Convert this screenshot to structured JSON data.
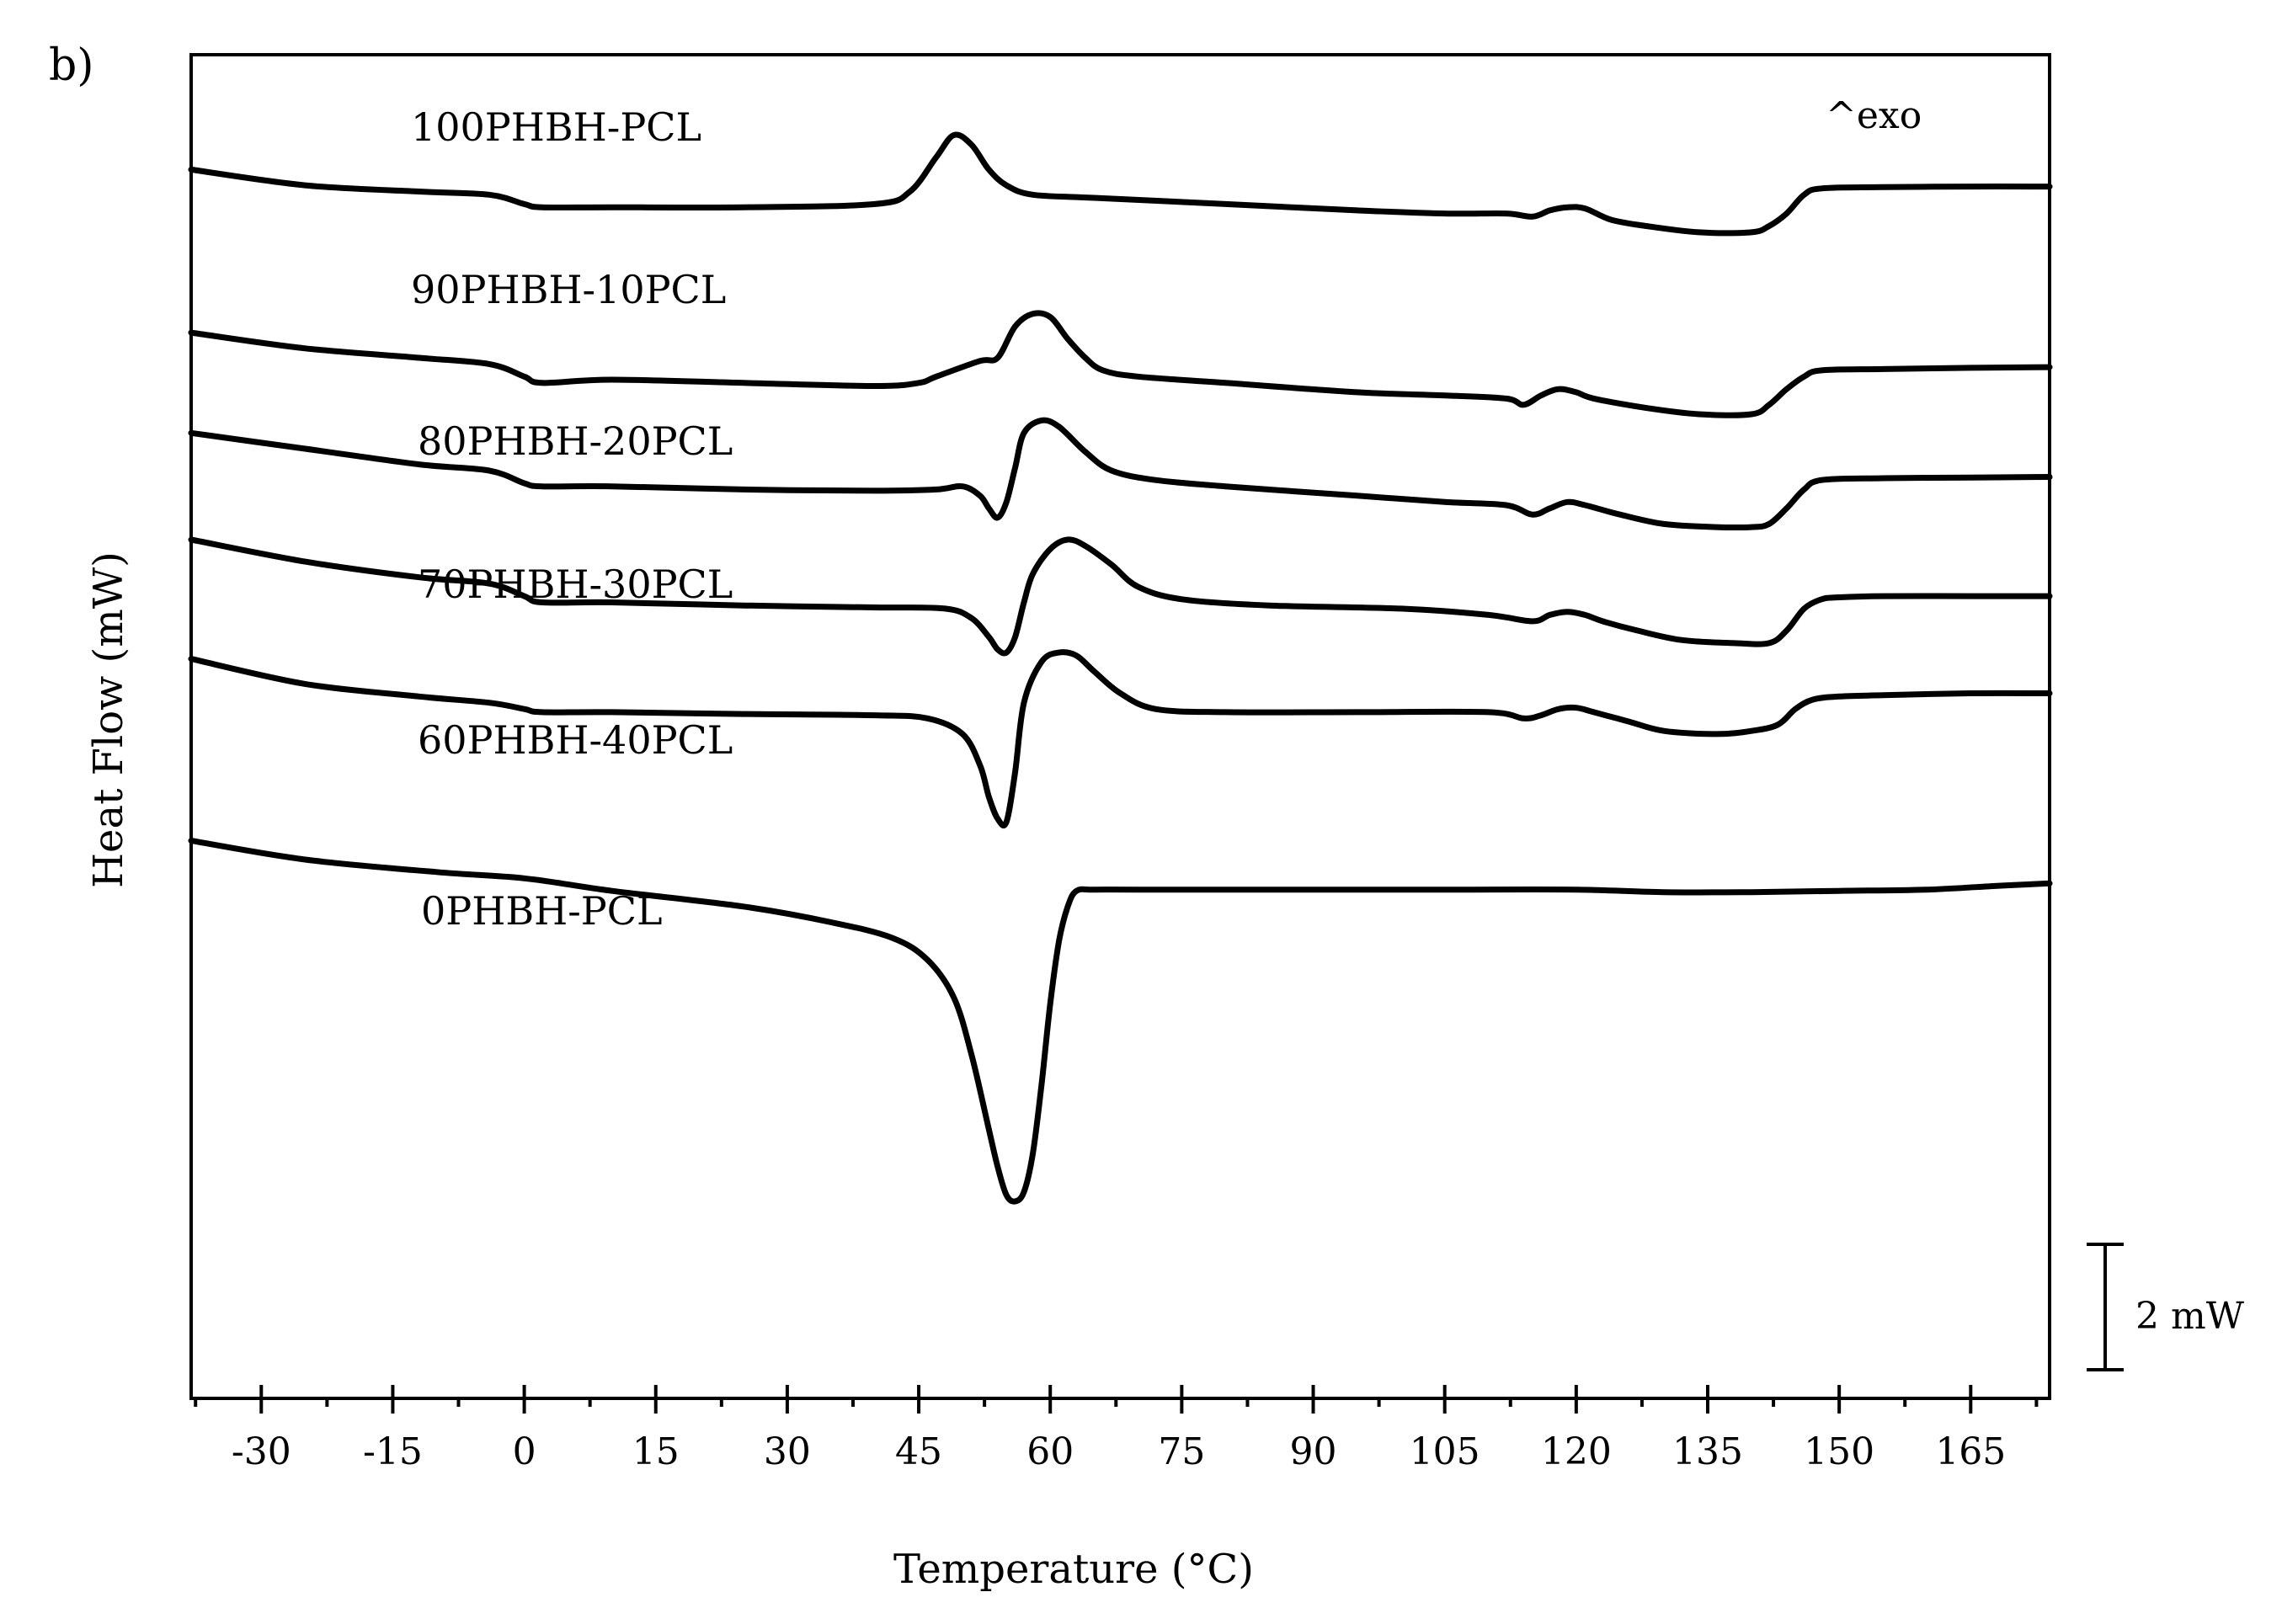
{
  "chart_data": {
    "type": "line",
    "panel_label": "b)",
    "title": "",
    "xlabel": "Temperature (°C)",
    "ylabel": "Heat Flow (mW)",
    "xlim": [
      -38,
      174
    ],
    "x_ticks": [
      -30,
      -15,
      0,
      15,
      30,
      45,
      60,
      75,
      90,
      105,
      120,
      135,
      150,
      165
    ],
    "y_ticks": [],
    "grid": false,
    "annotation": "^exo",
    "scale_bar_label": "2 mW",
    "scale_bar_mw": 2,
    "series": [
      {
        "name": "100PHBH-PCL",
        "offset": 0,
        "x": [
          -38,
          -25,
          -12,
          -4,
          0,
          2,
          10,
          25,
          40,
          44,
          47,
          49,
          51,
          53,
          55,
          58,
          65,
          80,
          95,
          105,
          112,
          115,
          117,
          119,
          121,
          124,
          128,
          134,
          140,
          142,
          144,
          146,
          148,
          155,
          165,
          174
        ],
        "y": [
          -0.1,
          -0.35,
          -0.45,
          -0.5,
          -0.65,
          -0.7,
          -0.7,
          -0.7,
          -0.65,
          -0.45,
          0.1,
          0.45,
          0.3,
          -0.1,
          -0.35,
          -0.5,
          -0.55,
          -0.65,
          -0.75,
          -0.8,
          -0.8,
          -0.85,
          -0.75,
          -0.7,
          -0.72,
          -0.9,
          -1.0,
          -1.1,
          -1.1,
          -1.0,
          -0.8,
          -0.5,
          -0.4,
          -0.38,
          -0.37,
          -0.37
        ]
      },
      {
        "name": "90PHBH-10PCL",
        "offset": -2.6,
        "x": [
          -38,
          -25,
          -12,
          -4,
          0,
          2,
          10,
          25,
          40,
          45,
          47,
          52,
          54,
          56,
          58,
          60,
          62,
          64,
          66,
          70,
          80,
          95,
          105,
          112,
          114,
          116,
          118,
          120,
          122,
          128,
          134,
          140,
          142,
          144,
          146,
          148,
          155,
          165,
          174
        ],
        "y": [
          -0.1,
          -0.35,
          -0.5,
          -0.6,
          -0.8,
          -0.9,
          -0.85,
          -0.9,
          -0.95,
          -0.9,
          -0.8,
          -0.55,
          -0.5,
          0.0,
          0.2,
          0.15,
          -0.2,
          -0.5,
          -0.7,
          -0.8,
          -0.9,
          -1.05,
          -1.1,
          -1.15,
          -1.25,
          -1.1,
          -1.0,
          -1.05,
          -1.15,
          -1.3,
          -1.4,
          -1.4,
          -1.25,
          -1.0,
          -0.8,
          -0.7,
          -0.68,
          -0.66,
          -0.65
        ]
      },
      {
        "name": "80PHBH-20PCL",
        "offset": -4.3,
        "x": [
          -38,
          -25,
          -12,
          -4,
          0,
          2,
          10,
          25,
          40,
          47,
          50,
          52,
          53,
          54,
          55,
          56,
          57,
          59,
          61,
          64,
          67,
          72,
          80,
          95,
          105,
          112,
          115,
          117,
          119,
          121,
          125,
          130,
          136,
          140,
          142,
          144,
          146,
          148,
          155,
          165,
          174
        ],
        "y": [
          0.0,
          -0.25,
          -0.5,
          -0.6,
          -0.8,
          -0.85,
          -0.85,
          -0.9,
          -0.92,
          -0.9,
          -0.85,
          -1.0,
          -1.2,
          -1.35,
          -1.1,
          -0.55,
          0.0,
          0.2,
          0.1,
          -0.3,
          -0.6,
          -0.75,
          -0.85,
          -1.0,
          -1.1,
          -1.15,
          -1.3,
          -1.2,
          -1.1,
          -1.15,
          -1.3,
          -1.45,
          -1.5,
          -1.5,
          -1.45,
          -1.2,
          -0.9,
          -0.75,
          -0.72,
          -0.71,
          -0.7
        ]
      },
      {
        "name": "70PHBH-30PCL",
        "offset": -6.0,
        "x": [
          -38,
          -25,
          -12,
          -4,
          0,
          2,
          10,
          25,
          40,
          48,
          51,
          53,
          54,
          55,
          56,
          57,
          58,
          60,
          62,
          64,
          67,
          70,
          75,
          85,
          100,
          110,
          115,
          117,
          119,
          121,
          123,
          127,
          132,
          138,
          142,
          144,
          146,
          148,
          150,
          155,
          165,
          174
        ],
        "y": [
          0.0,
          -0.35,
          -0.6,
          -0.7,
          -0.9,
          -1.0,
          -1.0,
          -1.05,
          -1.08,
          -1.1,
          -1.25,
          -1.55,
          -1.75,
          -1.8,
          -1.55,
          -1.0,
          -0.55,
          -0.15,
          0.0,
          -0.1,
          -0.4,
          -0.75,
          -0.95,
          -1.05,
          -1.1,
          -1.2,
          -1.3,
          -1.2,
          -1.15,
          -1.2,
          -1.3,
          -1.45,
          -1.6,
          -1.65,
          -1.65,
          -1.45,
          -1.1,
          -0.95,
          -0.92,
          -0.9,
          -0.9,
          -0.9
        ]
      },
      {
        "name": "60PHBH-40PCL",
        "offset": -7.9,
        "x": [
          -38,
          -25,
          -12,
          -4,
          0,
          2,
          10,
          25,
          40,
          46,
          50,
          52,
          53,
          54,
          55,
          56,
          57,
          59,
          61,
          63,
          65,
          68,
          72,
          80,
          95,
          110,
          114,
          116,
          118,
          120,
          122,
          126,
          130,
          136,
          140,
          143,
          145,
          147,
          150,
          155,
          165,
          174
        ],
        "y": [
          0.0,
          -0.4,
          -0.6,
          -0.7,
          -0.8,
          -0.85,
          -0.85,
          -0.88,
          -0.9,
          -0.95,
          -1.2,
          -1.7,
          -2.2,
          -2.55,
          -2.6,
          -1.8,
          -0.7,
          -0.05,
          0.1,
          0.05,
          -0.2,
          -0.55,
          -0.8,
          -0.85,
          -0.85,
          -0.85,
          -0.95,
          -0.9,
          -0.8,
          -0.78,
          -0.85,
          -1.0,
          -1.15,
          -1.2,
          -1.15,
          -1.05,
          -0.8,
          -0.65,
          -0.6,
          -0.58,
          -0.55,
          -0.55
        ]
      },
      {
        "name": "0PHBH-PCL",
        "offset": -10.8,
        "x": [
          -38,
          -25,
          -10,
          0,
          10,
          25,
          35,
          42,
          46,
          49,
          51,
          53,
          54,
          55,
          56,
          57,
          58,
          59,
          60,
          61,
          62,
          63,
          65,
          70,
          85,
          105,
          120,
          130,
          140,
          150,
          160,
          168,
          174
        ],
        "y": [
          0.0,
          -0.3,
          -0.5,
          -0.6,
          -0.8,
          -1.05,
          -1.3,
          -1.55,
          -1.9,
          -2.5,
          -3.4,
          -4.6,
          -5.2,
          -5.65,
          -5.75,
          -5.6,
          -5.0,
          -3.9,
          -2.6,
          -1.6,
          -1.05,
          -0.8,
          -0.78,
          -0.78,
          -0.78,
          -0.78,
          -0.78,
          -0.82,
          -0.82,
          -0.8,
          -0.78,
          -0.72,
          -0.68
        ]
      }
    ]
  }
}
